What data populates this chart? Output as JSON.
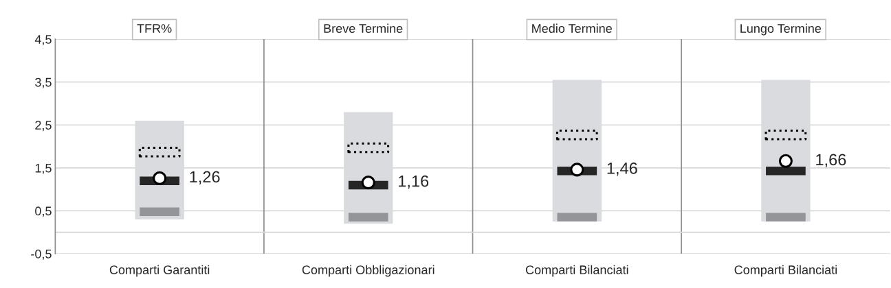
{
  "chart_data": {
    "type": "bar",
    "categories": [
      "Comparti Garantiti",
      "Comparti Obbligazionari",
      "Comparti Bilanciati",
      "Comparti Bilanciati"
    ],
    "annotations": [
      "TFR%",
      "Breve Termine",
      "Medio Termine",
      "Lungo Termine"
    ],
    "series": [
      {
        "color": "#dadbde",
        "base": [
          0.3,
          0.2,
          0.25,
          0.25
        ],
        "values": [
          2.3,
          2.6,
          3.3,
          3.3
        ]
      },
      {
        "color": "#939598",
        "base": [
          0.38,
          0.25,
          0.25,
          0.25
        ],
        "values": [
          0.2,
          0.2,
          0.2,
          0.2
        ]
      },
      {
        "color": "#262626",
        "base": [
          1.1,
          1.0,
          1.33,
          1.33
        ],
        "values": [
          0.2,
          0.2,
          0.2,
          0.2
        ]
      },
      {
        "color": "#000000",
        "line_style": "dotted",
        "base": [
          1.77,
          1.87,
          2.17,
          2.17
        ],
        "values": [
          0.2,
          0.2,
          0.2,
          0.2
        ]
      },
      {
        "type": "scatter",
        "color": "#ffffff",
        "marker": "circle",
        "values": [
          1.26,
          1.16,
          1.46,
          1.66
        ],
        "value_labels": [
          "1,26",
          "1,16",
          "1,46",
          "1,66"
        ]
      }
    ],
    "ylim": [
      -0.5,
      4.5
    ],
    "yticks": [
      {
        "value": -0.5,
        "label": "-0,5"
      },
      {
        "value": 0.5,
        "label": "0,5"
      },
      {
        "value": 1.5,
        "label": "1,5"
      },
      {
        "value": 2.5,
        "label": "2,5"
      },
      {
        "value": 3.5,
        "label": "3,5"
      },
      {
        "value": 4.5,
        "label": "4,5"
      }
    ],
    "ref_lines": [
      {
        "axis": "y",
        "value": 0,
        "color": "#d9d9d9"
      }
    ],
    "grid": true,
    "legend": false
  }
}
